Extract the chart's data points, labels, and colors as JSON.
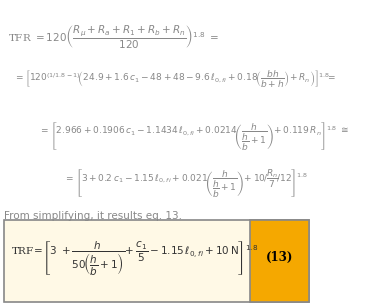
{
  "bg_color": "#ffffff",
  "box_bg_color": "#fff9e6",
  "box_border_color": "#888888",
  "highlight_bg": "#f5a800",
  "highlight_text_color": "#000000",
  "text_color": "#888888",
  "title_text": "From simplifying, it results eq. 13.",
  "eq_number": "(13)",
  "line1": "TFR = 120$\\left(\\dfrac{R_\\mu + R_a + R_1 + R_b + R_n}{120}\\right)^{1.8}$ =",
  "line2": "= $\\left[120^{(1/1.8-1)}\\left(24.9+1.6\\,c_1-48+48-9.6\\,\\ell_{0,fi}+0.18\\left(\\dfrac{bh}{b+h}\\right)+R_n\\right)\\right]^{1.8}$ =",
  "line3": "= $\\left[2.966+0.1906\\,c_1-1.1434\\,\\ell_{0,fi}+0.0214\\left(\\dfrac{h}{\\dfrac{h}{b}+1}\\right)+0.119\\,R_n\\right]^{1.8}$ $\\cong$",
  "line4": "= $\\left[3+0.2\\,c_1-1.15\\,\\ell_{0,fi}+0.021\\left(\\dfrac{h}{\\dfrac{h}{b}+1}\\right)+10\\bigg/\\!\\dfrac{R_n}{7}\\bigg/\\!12\\right]^{1.8}$",
  "final_eq": "TRF$=\\left[3\\;+\\dfrac{h}{50\\left(\\dfrac{h}{b}+1\\right)}+\\dfrac{c_1}{5}-1.15\\,\\ell_{0,fi}+10\\,\\mathrm{N}\\right]^{1.8}$"
}
